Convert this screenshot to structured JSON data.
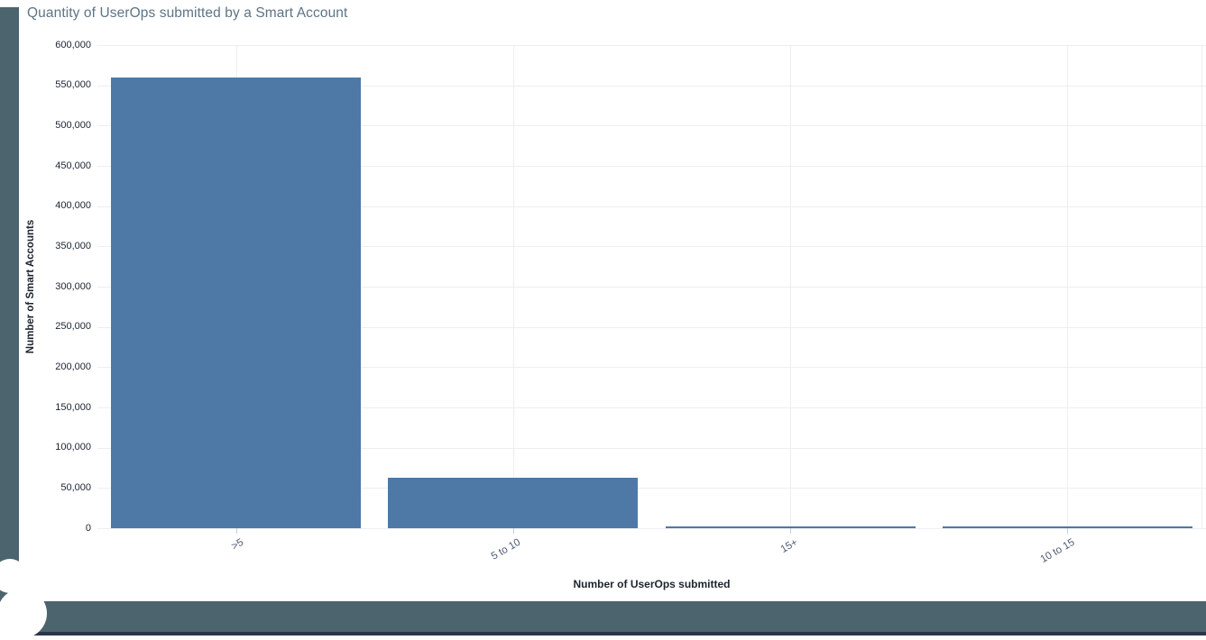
{
  "page": {
    "window_title": "Quantity of UserOps submitted by a Smart Account"
  },
  "chart_data": {
    "type": "bar",
    "title": "Quantity of UserOps submitted by a Smart Account",
    "categories": [
      ">5",
      "5 to 10",
      "15+",
      "10 to 15"
    ],
    "values": [
      560000,
      63000,
      2500,
      2000
    ],
    "xlabel": "Number of UserOps submitted",
    "ylabel": "Number of Smart Accounts",
    "ylim": [
      0,
      600000
    ],
    "ytick_step": 50000,
    "ytick_labels": [
      "0",
      "50,000",
      "100,000",
      "150,000",
      "200,000",
      "250,000",
      "300,000",
      "350,000",
      "400,000",
      "450,000",
      "500,000",
      "550,000",
      "600,000"
    ],
    "grid": true,
    "legend": false,
    "bar_color": "#4e79a7"
  },
  "colors": {
    "bar": "#4e79a7",
    "frame_band": "#4c646e",
    "frame_band_dark": "#2c3547",
    "title_text": "#5d7486",
    "axis_text": "#1c2430",
    "xtick_text": "#4e5a74",
    "gridline": "#edeef3"
  }
}
